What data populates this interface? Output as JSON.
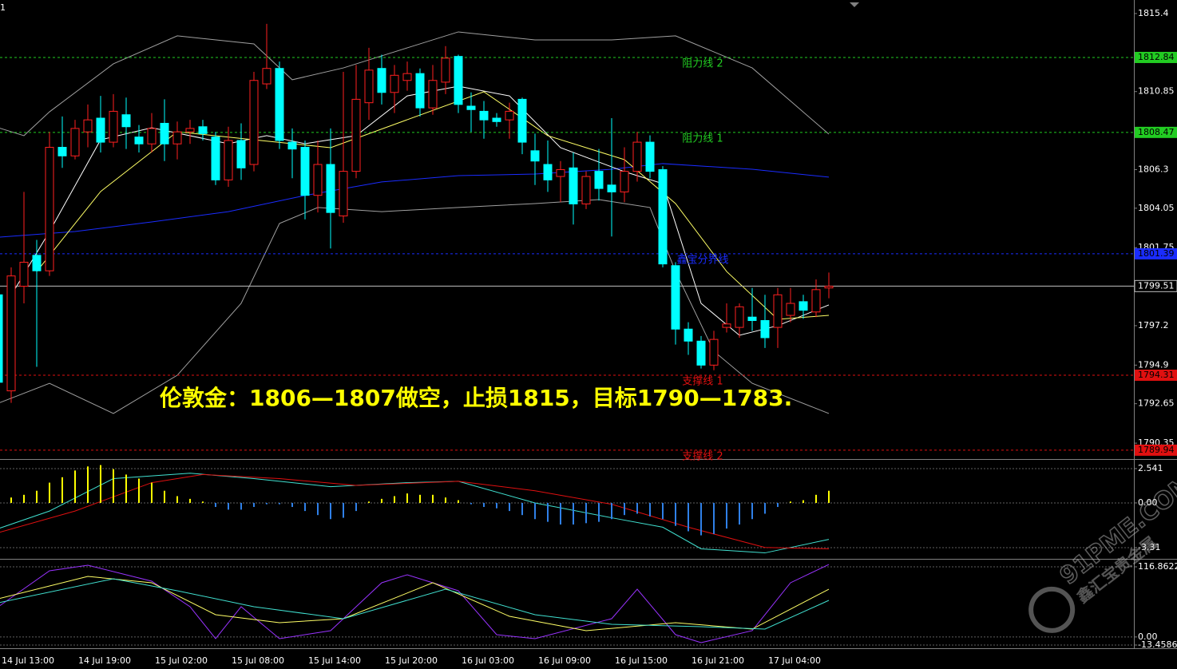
{
  "corner_label": "1",
  "watermark": {
    "text": "91PME.COM",
    "subtext": "鑫汇宝贵金属"
  },
  "chart_data": [
    {
      "type": "candlestick",
      "annotation": "伦敦金：1806—1807做空，止损1815，目标1790—1783.",
      "categories": [
        "14 Jul 13:00",
        null,
        null,
        null,
        null,
        null,
        "14 Jul 19:00",
        null,
        null,
        null,
        null,
        null,
        "15 Jul 02:00",
        null,
        null,
        null,
        null,
        null,
        "15 Jul 08:00",
        null,
        null,
        null,
        null,
        null,
        "15 Jul 14:00",
        null,
        null,
        null,
        null,
        null,
        "15 Jul 20:00",
        null,
        null,
        null,
        null,
        null,
        "16 Jul 03:00",
        null,
        null,
        null,
        null,
        null,
        "16 Jul 09:00",
        null,
        null,
        null,
        null,
        null,
        "16 Jul 15:00",
        null,
        null,
        null,
        null,
        null,
        "16 Jul 21:00",
        null,
        null,
        null,
        null,
        null,
        "17 Jul 04:00",
        null,
        null,
        null,
        null,
        null
      ],
      "open": [
        1799.0,
        1793.4,
        1799.5,
        1801.3,
        1800.4,
        1807.6,
        1807.1,
        1808.5,
        1809.3,
        1807.9,
        1809.5,
        1808.2,
        1807.8,
        1809.0,
        1807.8,
        1808.5,
        1808.8,
        1808.2,
        1805.7,
        1808.0,
        1806.6,
        1811.3,
        1812.2,
        1807.9,
        1807.6,
        1804.8,
        1806.6,
        1803.6,
        1806.2,
        1810.2,
        1812.2,
        1810.8,
        1811.5,
        1811.9,
        1809.9,
        1811.4,
        1812.9,
        1810.0,
        1809.7,
        1809.3,
        1809.2,
        1810.4,
        1807.4,
        1806.6,
        1805.9,
        1806.4,
        1804.3,
        1806.2,
        1805.4,
        1805.0,
        1806.2,
        1807.9,
        1806.3,
        1800.7,
        1797.0,
        1796.3,
        1794.9,
        1797.1,
        1797.1,
        1797.7,
        1797.5,
        1797.1,
        1797.8,
        1798.6,
        1798.0,
        1799.4
      ],
      "high": [
        1799.4,
        1800.6,
        1805.0,
        1802.2,
        1808.5,
        1809.4,
        1809.2,
        1810.1,
        1810.6,
        1810.7,
        1810.5,
        1808.9,
        1809.6,
        1810.4,
        1809.1,
        1809.2,
        1809.2,
        1808.5,
        1808.8,
        1809.0,
        1812.0,
        1814.8,
        1812.6,
        1808.7,
        1808.0,
        1808.0,
        1808.7,
        1812.0,
        1812.4,
        1813.4,
        1813.0,
        1812.4,
        1812.6,
        1812.2,
        1812.4,
        1813.5,
        1813.0,
        1810.8,
        1810.3,
        1809.6,
        1810.2,
        1810.5,
        1808.4,
        1808.0,
        1806.8,
        1807.3,
        1806.2,
        1807.5,
        1809.3,
        1807.6,
        1808.5,
        1808.3,
        1806.5,
        1800.9,
        1797.4,
        1796.6,
        1796.9,
        1798.5,
        1798.5,
        1799.4,
        1799.0,
        1799.4,
        1799.4,
        1799.0,
        1799.9,
        1800.3
      ],
      "low": [
        1793.8,
        1792.7,
        1798.5,
        1794.8,
        1800.1,
        1806.4,
        1806.9,
        1807.6,
        1807.3,
        1807.6,
        1807.5,
        1807.3,
        1807.3,
        1806.8,
        1806.9,
        1807.8,
        1808.0,
        1805.4,
        1805.3,
        1805.7,
        1806.2,
        1811.0,
        1807.5,
        1805.8,
        1803.4,
        1803.8,
        1801.7,
        1803.2,
        1805.8,
        1809.2,
        1810.1,
        1809.6,
        1810.9,
        1809.4,
        1809.5,
        1810.7,
        1809.6,
        1808.5,
        1808.1,
        1808.8,
        1808.1,
        1807.2,
        1805.4,
        1805.0,
        1804.4,
        1803.1,
        1804.0,
        1804.5,
        1802.4,
        1804.4,
        1805.6,
        1805.8,
        1800.6,
        1796.1,
        1795.5,
        1794.7,
        1794.6,
        1796.8,
        1796.5,
        1796.9,
        1795.9,
        1795.9,
        1797.4,
        1797.6,
        1797.7,
        1798.8
      ],
      "close": [
        1793.9,
        1800.1,
        1800.9,
        1800.4,
        1807.6,
        1807.1,
        1808.7,
        1809.2,
        1807.9,
        1809.7,
        1808.8,
        1807.8,
        1808.7,
        1807.8,
        1808.5,
        1808.7,
        1808.4,
        1805.7,
        1808.0,
        1806.4,
        1811.5,
        1812.2,
        1808.0,
        1807.5,
        1804.8,
        1806.6,
        1803.8,
        1806.2,
        1810.4,
        1812.1,
        1810.8,
        1811.8,
        1811.9,
        1809.9,
        1811.5,
        1812.8,
        1810.1,
        1809.8,
        1809.2,
        1809.1,
        1809.7,
        1807.9,
        1806.8,
        1805.7,
        1806.3,
        1804.3,
        1805.9,
        1805.2,
        1805.0,
        1806.2,
        1807.9,
        1806.2,
        1800.8,
        1797.0,
        1796.3,
        1794.9,
        1796.4,
        1797.3,
        1798.3,
        1797.5,
        1796.5,
        1799.0,
        1798.5,
        1798.1,
        1799.3,
        1799.5
      ],
      "up_color": "#ff2020",
      "down_color": "#00ffff",
      "lines": [
        {
          "color": "#a0a0a0",
          "x": [
            0,
            2,
            4,
            9,
            14,
            20,
            23,
            27,
            32,
            36,
            42,
            48,
            53,
            59,
            65
          ],
          "values": [
            1808.74,
            1808.28,
            1809.67,
            1812.47,
            1814.1,
            1813.63,
            1811.54,
            1812.23,
            1813.4,
            1814.33,
            1813.86,
            1813.86,
            1814.1,
            1812.23,
            1808.37
          ]
        },
        {
          "color": "#a0a0a0",
          "x": [
            0,
            4,
            9,
            14,
            19,
            22,
            25,
            30,
            36,
            42,
            47,
            51,
            53,
            56,
            59,
            65
          ],
          "values": [
            1792.68,
            1793.84,
            1792.08,
            1794.31,
            1798.5,
            1803.16,
            1804.09,
            1803.85,
            1804.09,
            1804.32,
            1804.55,
            1804.09,
            1800.36,
            1795.71,
            1793.84,
            1792.08
          ]
        },
        {
          "color": "#1a2cff",
          "x": [
            0,
            6,
            12,
            18,
            24,
            30,
            36,
            42,
            48,
            52,
            59,
            65
          ],
          "values": [
            1802.36,
            1802.69,
            1803.25,
            1803.85,
            1804.79,
            1805.58,
            1805.95,
            1806.04,
            1806.32,
            1806.65,
            1806.32,
            1805.86
          ]
        },
        {
          "color": "#ffffff",
          "x": [
            1,
            4,
            8,
            12,
            18,
            21,
            24,
            28,
            32,
            36,
            40,
            44,
            49,
            52,
            55,
            58,
            61,
            65
          ],
          "values": [
            1798.97,
            1802.69,
            1808.04,
            1808.74,
            1807.81,
            1808.28,
            1807.81,
            1808.28,
            1810.6,
            1811.16,
            1810.6,
            1807.58,
            1806.18,
            1805.48,
            1798.5,
            1796.64,
            1797.2,
            1798.41
          ]
        },
        {
          "color": "#ffff66",
          "x": [
            3,
            8,
            14,
            20,
            26,
            32,
            38,
            43,
            49,
            53,
            57,
            61,
            65
          ],
          "values": [
            1800.36,
            1805.02,
            1808.51,
            1808.04,
            1807.58,
            1809.21,
            1810.84,
            1808.28,
            1806.88,
            1804.32,
            1800.36,
            1797.57,
            1797.8
          ]
        }
      ],
      "levels": [
        {
          "label": "阻力线 2",
          "value": 1812.84,
          "color": "#22cc22"
        },
        {
          "label": "阻力线 1",
          "value": 1808.47,
          "color": "#22cc22"
        },
        {
          "label": "鑫宝分界线",
          "value": 1801.39,
          "color": "#1a2cff"
        },
        {
          "value": 1799.51,
          "color": "#c0c0c0"
        },
        {
          "label": "支撑线 1",
          "value": 1794.31,
          "color": "#e01010"
        },
        {
          "label": "支撑线 2",
          "value": 1789.94,
          "color": "#e01010"
        }
      ],
      "ylim": [
        1789.47,
        1816.19
      ],
      "yticks": [
        1815.4,
        1810.85,
        1806.3,
        1804.05,
        1801.75,
        1797.2,
        1794.9,
        1792.65,
        1790.35
      ]
    },
    {
      "type": "bar",
      "values": [
        0.2,
        0.4,
        0.6,
        0.9,
        1.5,
        1.9,
        2.4,
        2.7,
        2.8,
        2.5,
        2.1,
        1.8,
        1.5,
        0.9,
        0.5,
        0.3,
        0.1,
        -0.3,
        -0.5,
        -0.5,
        -0.3,
        -0.1,
        -0.1,
        -0.3,
        -0.6,
        -0.9,
        -1.2,
        -1.1,
        -0.6,
        0.1,
        0.3,
        0.5,
        0.7,
        0.6,
        0.6,
        0.4,
        0.2,
        -0.1,
        -0.3,
        -0.4,
        -0.6,
        -0.9,
        -1.2,
        -1.4,
        -1.6,
        -1.6,
        -1.5,
        -1.4,
        -1.2,
        -0.9,
        -0.8,
        -1.0,
        -1.2,
        -1.7,
        -2.1,
        -2.4,
        -2.3,
        -1.9,
        -1.6,
        -1.2,
        -0.8,
        -0.3,
        0.1,
        0.2,
        0.6,
        0.9
      ],
      "positive_color": "#ffff00",
      "negative_color": "#2f80e8",
      "lines": [
        {
          "color": "#40e0d0",
          "x": [
            0,
            4,
            9,
            15,
            20,
            26,
            32,
            36,
            42,
            48,
            52,
            55,
            60,
            65
          ],
          "values": [
            -1.9,
            -0.6,
            1.8,
            2.2,
            1.8,
            1.2,
            1.5,
            1.6,
            0,
            -1.1,
            -1.8,
            -3.4,
            -3.7,
            -2.7
          ]
        },
        {
          "color": "#e01010",
          "x": [
            0,
            6,
            12,
            16,
            22,
            28,
            36,
            42,
            48,
            54,
            60,
            65
          ],
          "values": [
            -2.2,
            -0.6,
            1.5,
            2.1,
            1.8,
            1.3,
            1.6,
            0.9,
            -0.1,
            -1.8,
            -3.3,
            -3.4
          ]
        }
      ],
      "ylim": [
        -4.14,
        3.13
      ],
      "yticks": [
        2.541,
        {
          "value": 0,
          "label": "0.00"
        },
        -3.31
      ]
    },
    {
      "type": "line",
      "lines": [
        {
          "color": "#9933ff",
          "x": [
            0,
            4,
            7,
            12,
            15,
            17,
            19,
            22,
            26,
            30,
            32,
            36,
            39,
            42,
            48,
            50,
            53,
            55,
            59,
            62,
            65
          ],
          "values": [
            50.4,
            110.2,
            119.5,
            92.9,
            50.4,
            -2.8,
            50.4,
            -2.8,
            10.5,
            90.3,
            103.6,
            77.0,
            3.8,
            -2.8,
            30.4,
            79.6,
            3.8,
            -9.5,
            10.5,
            90.3,
            120.8
          ]
        },
        {
          "color": "#ffff66",
          "x": [
            0,
            7,
            12,
            17,
            22,
            27,
            34,
            40,
            46,
            53,
            59,
            65
          ],
          "values": [
            63.7,
            100.9,
            90.3,
            37.1,
            23.8,
            30.4,
            90.3,
            34.4,
            10.5,
            23.8,
            13.1,
            79.6
          ]
        },
        {
          "color": "#40e0d0",
          "x": [
            0,
            9,
            14,
            20,
            27,
            35,
            42,
            48,
            55,
            60,
            65
          ],
          "values": [
            57.0,
            96.9,
            77.0,
            50.4,
            30.4,
            79.6,
            37.1,
            21.1,
            17.1,
            13.1,
            61.0
          ]
        }
      ],
      "ylim": [
        -18.8,
        127.5
      ],
      "yticks": [
        116.8622,
        {
          "value": 0,
          "label": "0.00"
        },
        -13.4586
      ]
    }
  ]
}
